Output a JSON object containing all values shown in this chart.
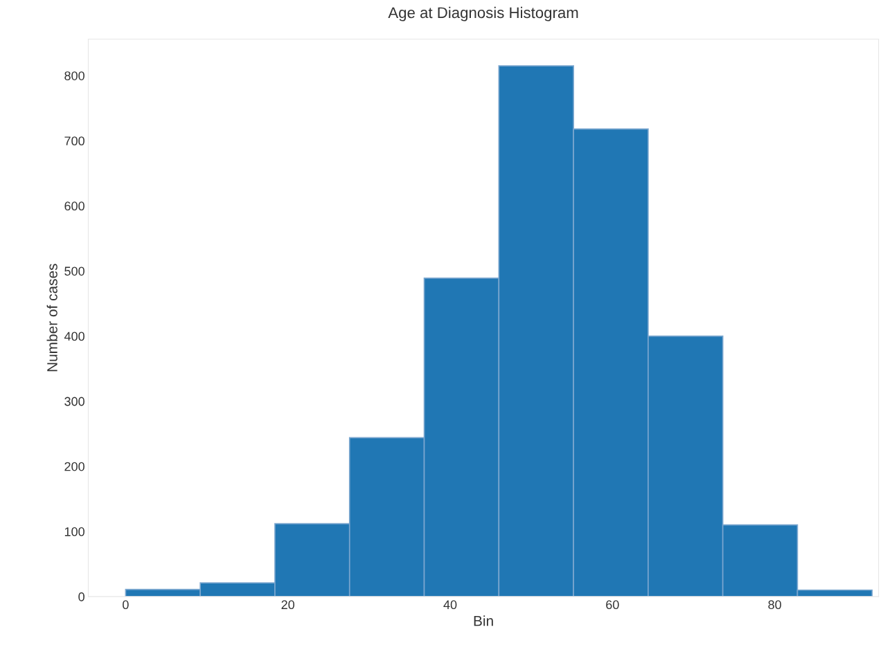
{
  "chart_data": {
    "type": "histogram",
    "title": "Age at Diagnosis Histogram",
    "xlabel": "Bin",
    "ylabel": "Number of cases",
    "bins": [
      0,
      9.2,
      18.4,
      27.6,
      36.8,
      46,
      55.2,
      64.4,
      73.6,
      82.8,
      92
    ],
    "values": [
      11,
      21,
      112,
      244,
      489,
      815,
      718,
      400,
      110,
      10
    ],
    "color": "#2077b4",
    "xlim": [
      -4.6,
      92.8
    ],
    "xticks": [
      0,
      20,
      40,
      60,
      80
    ],
    "ylim": [
      0,
      856
    ],
    "yticks": [
      0,
      100,
      200,
      300,
      400,
      500,
      600,
      700,
      800
    ],
    "grid": false
  }
}
